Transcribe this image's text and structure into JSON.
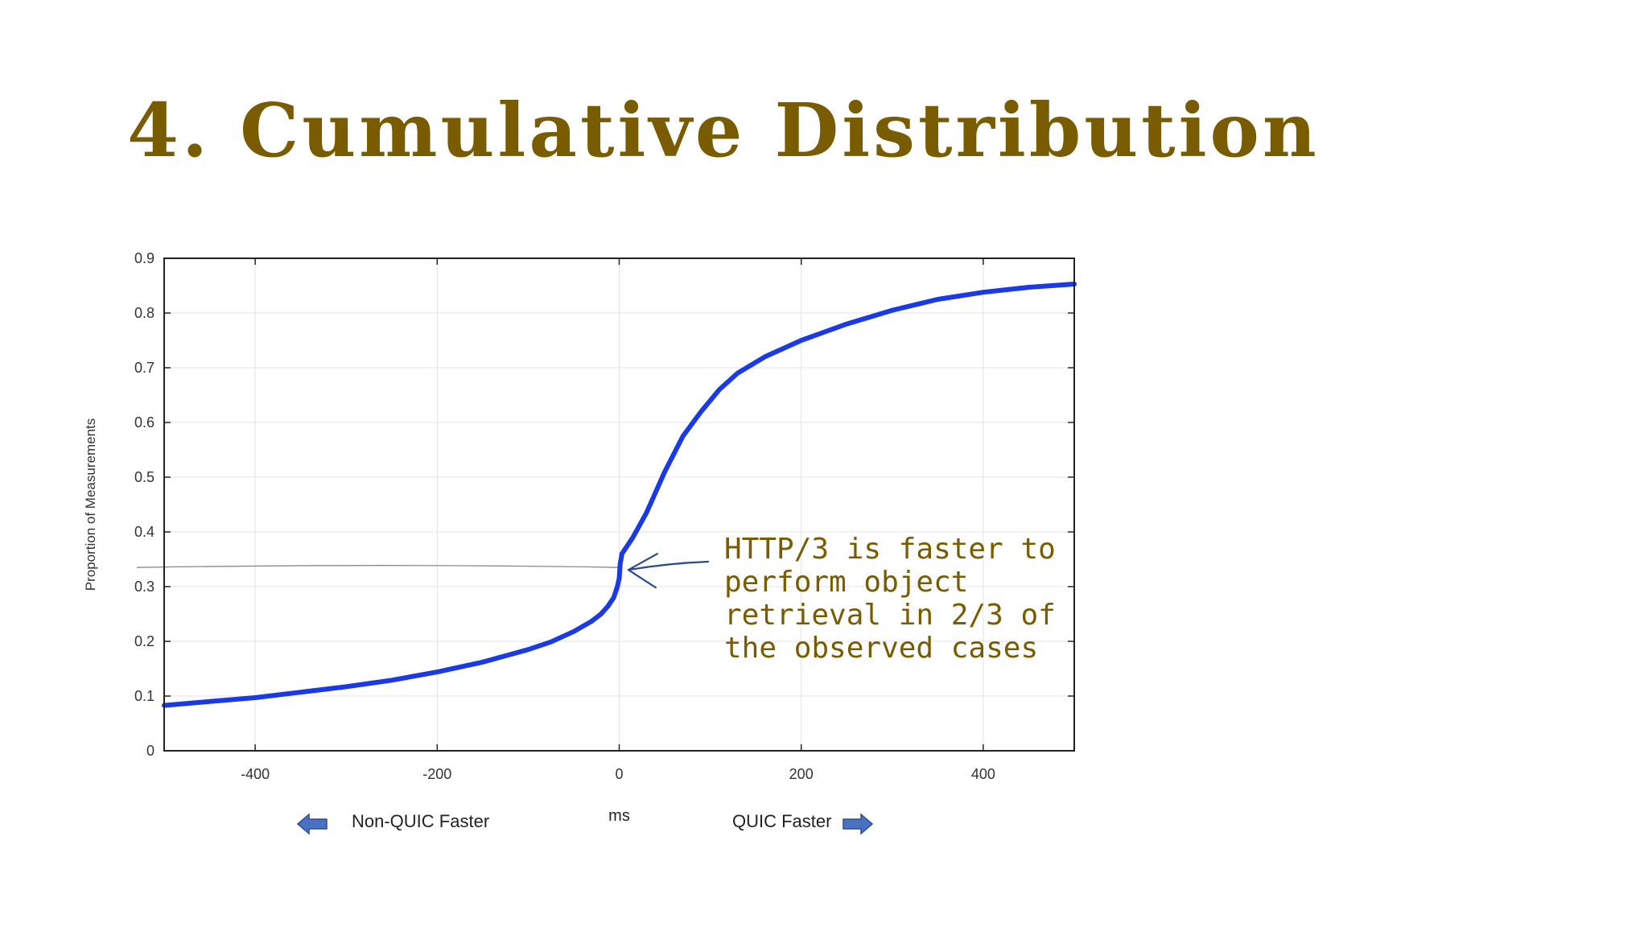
{
  "slide": {
    "title": "4.  Cumulative Distribution"
  },
  "chart_data": {
    "type": "line",
    "title": "",
    "xlabel": "ms",
    "ylabel": "Proportion of Measurements",
    "xlim": [
      -500,
      500
    ],
    "ylim": [
      0,
      0.9
    ],
    "xticks": [
      -400,
      -200,
      0,
      200,
      400
    ],
    "yticks": [
      0,
      0.1,
      0.2,
      0.3,
      0.4,
      0.5,
      0.6,
      0.7,
      0.8,
      0.9
    ],
    "grid": true,
    "series": [
      {
        "color": "#1a3ae6",
        "points": [
          [
            -500,
            0.083
          ],
          [
            -450,
            0.09
          ],
          [
            -400,
            0.097
          ],
          [
            -350,
            0.107
          ],
          [
            -300,
            0.117
          ],
          [
            -250,
            0.129
          ],
          [
            -200,
            0.144
          ],
          [
            -150,
            0.162
          ],
          [
            -100,
            0.185
          ],
          [
            -75,
            0.199
          ],
          [
            -50,
            0.218
          ],
          [
            -30,
            0.237
          ],
          [
            -20,
            0.25
          ],
          [
            -12,
            0.265
          ],
          [
            -6,
            0.28
          ],
          [
            -2,
            0.3
          ],
          [
            0,
            0.315
          ],
          [
            1,
            0.34
          ],
          [
            3,
            0.36
          ],
          [
            15,
            0.39
          ],
          [
            30,
            0.435
          ],
          [
            50,
            0.51
          ],
          [
            70,
            0.575
          ],
          [
            90,
            0.62
          ],
          [
            110,
            0.66
          ],
          [
            130,
            0.69
          ],
          [
            160,
            0.72
          ],
          [
            200,
            0.75
          ],
          [
            250,
            0.78
          ],
          [
            300,
            0.805
          ],
          [
            350,
            0.825
          ],
          [
            400,
            0.838
          ],
          [
            450,
            0.847
          ],
          [
            500,
            0.853
          ]
        ]
      }
    ],
    "reference_line": {
      "y": 0.335,
      "color": "#888888"
    },
    "annotation": {
      "lines": [
        "HTTP/3 is faster to",
        "perform object",
        "retrieval in 2/3 of",
        "the observed cases"
      ],
      "color": "#7a5c00",
      "arrow_color": "#2a4a8a",
      "points_to": [
        3,
        0.335
      ]
    }
  },
  "legend": {
    "left_label": "Non-QUIC Faster",
    "right_label": "QUIC Faster",
    "left_icon": "arrow-left-icon",
    "right_icon": "arrow-right-icon",
    "arrow_color": "#4a72c4"
  }
}
